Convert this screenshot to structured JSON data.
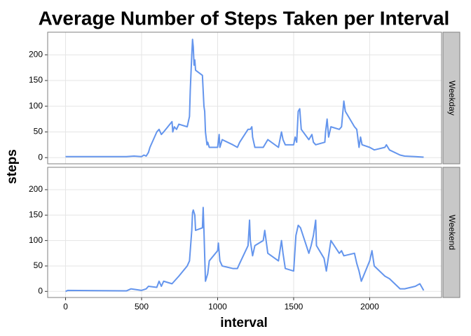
{
  "chart_data": {
    "type": "line",
    "facet": true,
    "title": "Average Number of Steps Taken per Interval",
    "xlabel": "interval",
    "ylabel": "steps",
    "xlim": [
      -117.75,
      2472.75
    ],
    "xticks": [
      0,
      500,
      1000,
      1500,
      2000
    ],
    "ylim": [
      -12,
      244
    ],
    "yticks": [
      0,
      50,
      100,
      150,
      200
    ],
    "grid": true,
    "series": [
      {
        "name": "Weekday",
        "color": "#6495ed",
        "x": [
          0,
          400,
          450,
          500,
          515,
          530,
          545,
          555,
          600,
          615,
          630,
          645,
          700,
          705,
          715,
          730,
          745,
          800,
          815,
          820,
          830,
          835,
          840,
          845,
          850,
          855,
          900,
          905,
          910,
          915,
          920,
          930,
          935,
          945,
          1000,
          1010,
          1015,
          1030,
          1100,
          1130,
          1145,
          1200,
          1215,
          1225,
          1230,
          1245,
          1300,
          1330,
          1400,
          1420,
          1430,
          1445,
          1500,
          1510,
          1520,
          1530,
          1540,
          1550,
          1600,
          1620,
          1630,
          1645,
          1705,
          1710,
          1720,
          1730,
          1745,
          1800,
          1815,
          1830,
          1840,
          1850,
          1900,
          1915,
          1930,
          1940,
          1950,
          2000,
          2030,
          2100,
          2110,
          2130,
          2200,
          2230,
          2300,
          2355
        ],
        "values": [
          2,
          2,
          3,
          2,
          5,
          3,
          10,
          20,
          50,
          55,
          45,
          50,
          70,
          50,
          60,
          55,
          65,
          60,
          80,
          130,
          200,
          230,
          215,
          180,
          190,
          170,
          160,
          130,
          100,
          90,
          50,
          25,
          30,
          20,
          20,
          45,
          20,
          35,
          25,
          20,
          30,
          55,
          55,
          60,
          40,
          20,
          20,
          35,
          20,
          50,
          35,
          25,
          25,
          40,
          30,
          90,
          95,
          55,
          35,
          45,
          30,
          25,
          30,
          50,
          75,
          40,
          60,
          55,
          60,
          110,
          90,
          85,
          60,
          55,
          20,
          40,
          25,
          20,
          15,
          20,
          25,
          15,
          5,
          3,
          2,
          1
        ]
      },
      {
        "name": "Weekend",
        "color": "#6495ed",
        "x": [
          0,
          15,
          400,
          430,
          500,
          530,
          545,
          600,
          615,
          630,
          645,
          700,
          730,
          745,
          800,
          815,
          830,
          835,
          840,
          850,
          855,
          900,
          905,
          910,
          915,
          920,
          935,
          945,
          1000,
          1005,
          1015,
          1030,
          1100,
          1130,
          1145,
          1200,
          1210,
          1215,
          1230,
          1245,
          1300,
          1310,
          1330,
          1400,
          1420,
          1430,
          1445,
          1500,
          1515,
          1530,
          1545,
          1600,
          1615,
          1630,
          1645,
          1650,
          1700,
          1715,
          1745,
          1800,
          1815,
          1830,
          1900,
          1915,
          1930,
          1945,
          2000,
          2015,
          2030,
          2100,
          2130,
          2200,
          2230,
          2300,
          2330,
          2355
        ],
        "values": [
          0,
          2,
          1,
          5,
          2,
          5,
          10,
          8,
          20,
          10,
          20,
          15,
          25,
          30,
          50,
          60,
          120,
          155,
          160,
          150,
          120,
          125,
          165,
          120,
          70,
          20,
          35,
          60,
          80,
          95,
          60,
          50,
          45,
          45,
          55,
          90,
          140,
          100,
          70,
          90,
          100,
          120,
          75,
          60,
          100,
          75,
          45,
          40,
          110,
          130,
          125,
          75,
          90,
          110,
          140,
          90,
          65,
          40,
          100,
          75,
          80,
          70,
          75,
          55,
          40,
          20,
          60,
          80,
          50,
          30,
          25,
          5,
          5,
          10,
          15,
          2
        ]
      }
    ]
  }
}
